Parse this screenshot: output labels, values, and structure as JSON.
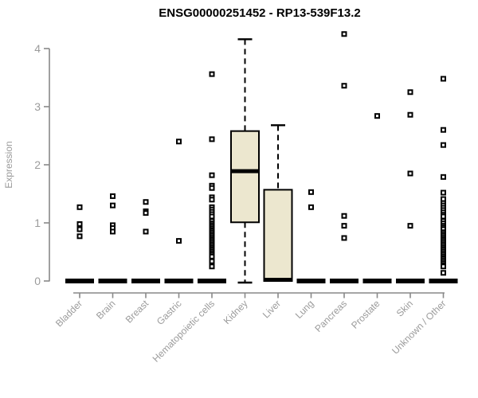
{
  "page": {
    "background": "#ffffff"
  },
  "chart_data": {
    "type": "box",
    "title": "ENSG00000251452 - RP13-539F13.2",
    "xlabel": "",
    "ylabel": "Expression",
    "ylim": [
      0,
      4.3
    ],
    "yticks": [
      0,
      1,
      2,
      3,
      4
    ],
    "grid": false,
    "legend": "none",
    "colors": {
      "box_fill": "#ece7cf",
      "box_stroke": "#000000",
      "median": "#000000",
      "whisker": "#000000",
      "outlier_stroke": "#000000",
      "outlier_fill": "#ffffff",
      "axis_line": "#898989",
      "axis_text": "#9b9b9b",
      "title_text": "#000000"
    },
    "categories": [
      "Bladder",
      "Brain",
      "Breast",
      "Gastric",
      "Hematopoietic cells",
      "Kidney",
      "Liver",
      "Lung",
      "Pancreas",
      "Prostate",
      "Skin",
      "Unknown / Other"
    ],
    "series": [
      {
        "name": "Bladder",
        "q1": 0,
        "median": 0,
        "q3": 0,
        "whisker_low": 0,
        "whisker_high": 0,
        "outliers": [
          1.27,
          0.98,
          0.89,
          0.77
        ]
      },
      {
        "name": "Brain",
        "q1": 0,
        "median": 0,
        "q3": 0,
        "whisker_low": 0,
        "whisker_high": 0,
        "outliers": [
          1.46,
          1.3,
          0.96,
          0.91,
          0.85
        ]
      },
      {
        "name": "Breast",
        "q1": 0,
        "median": 0,
        "q3": 0,
        "whisker_low": 0,
        "whisker_high": 0,
        "outliers": [
          1.36,
          1.2,
          1.17,
          0.85
        ]
      },
      {
        "name": "Gastric",
        "q1": 0,
        "median": 0,
        "q3": 0,
        "whisker_low": 0,
        "whisker_high": 0,
        "outliers": [
          2.4,
          0.69
        ]
      },
      {
        "name": "Hematopoietic cells",
        "q1": 0,
        "median": 0,
        "q3": 0,
        "whisker_low": 0,
        "whisker_high": 0,
        "outliers": [
          3.56,
          2.44,
          1.82,
          1.64,
          1.6,
          1.44,
          1.4,
          1.27,
          1.23,
          1.19,
          1.15,
          1.11,
          1.03,
          0.99,
          0.96,
          0.93,
          0.9,
          0.87,
          0.84,
          0.81,
          0.78,
          0.75,
          0.72,
          0.69,
          0.66,
          0.63,
          0.6,
          0.57,
          0.54,
          0.51,
          0.48,
          0.45,
          0.42,
          0.34,
          0.25
        ]
      },
      {
        "name": "Kidney",
        "q1": 1.01,
        "median": 1.89,
        "q3": 2.58,
        "whisker_low": 0.0,
        "whisker_high": 4.16,
        "outliers": []
      },
      {
        "name": "Liver",
        "q1": 0.0,
        "median": 0.02,
        "q3": 1.57,
        "whisker_low": 0.0,
        "whisker_high": 2.68,
        "outliers": []
      },
      {
        "name": "Lung",
        "q1": 0,
        "median": 0,
        "q3": 0,
        "whisker_low": 0,
        "whisker_high": 0,
        "outliers": [
          1.53,
          1.27
        ]
      },
      {
        "name": "Pancreas",
        "q1": 0,
        "median": 0,
        "q3": 0,
        "whisker_low": 0,
        "whisker_high": 0,
        "outliers": [
          4.25,
          3.36,
          1.12,
          0.95,
          0.74
        ]
      },
      {
        "name": "Prostate",
        "q1": 0,
        "median": 0,
        "q3": 0,
        "whisker_low": 0,
        "whisker_high": 0,
        "outliers": [
          2.84
        ]
      },
      {
        "name": "Skin",
        "q1": 0,
        "median": 0,
        "q3": 0,
        "whisker_low": 0,
        "whisker_high": 0,
        "outliers": [
          3.25,
          2.86,
          1.85,
          0.95
        ]
      },
      {
        "name": "Unknown / Other",
        "q1": 0,
        "median": 0,
        "q3": 0,
        "whisker_low": 0,
        "whisker_high": 0,
        "outliers": [
          3.48,
          2.6,
          2.34,
          1.79,
          1.52,
          1.41,
          1.34,
          1.3,
          1.26,
          1.22,
          1.18,
          1.14,
          1.11,
          1.03,
          0.99,
          0.95,
          0.92,
          0.89,
          0.84,
          0.81,
          0.78,
          0.75,
          0.72,
          0.69,
          0.66,
          0.63,
          0.6,
          0.57,
          0.54,
          0.51,
          0.48,
          0.45,
          0.42,
          0.39,
          0.36,
          0.33,
          0.3,
          0.27,
          0.25,
          0.14
        ]
      }
    ]
  }
}
